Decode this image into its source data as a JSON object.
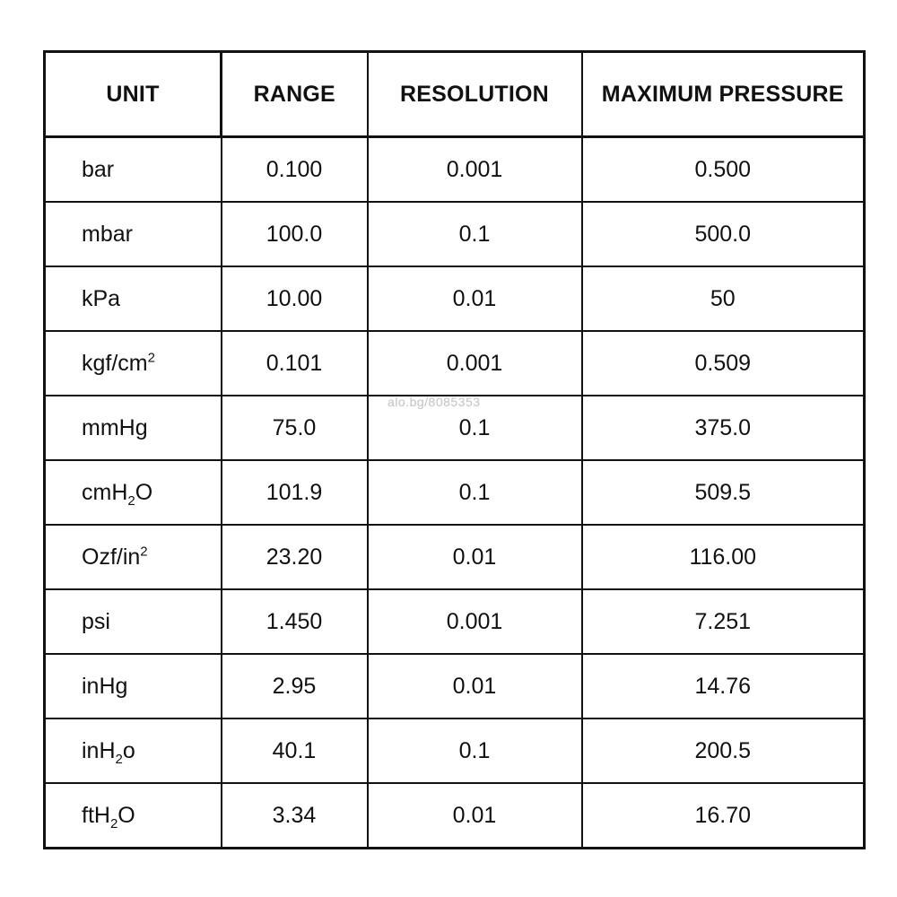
{
  "table": {
    "headers": [
      "UNIT",
      "RANGE",
      "RESOLUTION",
      "MAXIMUM PRESSURE"
    ],
    "rows": [
      {
        "unit": [
          "bar"
        ],
        "range": "0.100",
        "resolution": "0.001",
        "max": "0.500"
      },
      {
        "unit": [
          "mbar"
        ],
        "range": "100.0",
        "resolution": "0.1",
        "max": "500.0"
      },
      {
        "unit": [
          "kPa"
        ],
        "range": "10.00",
        "resolution": "0.01",
        "max": "50"
      },
      {
        "unit": [
          "kgf/cm",
          {
            "sup": "2"
          }
        ],
        "range": "0.101",
        "resolution": "0.001",
        "max": "0.509"
      },
      {
        "unit": [
          "mmHg"
        ],
        "range": "75.0",
        "resolution": "0.1",
        "max": "375.0"
      },
      {
        "unit": [
          "cmH",
          {
            "sub": "2"
          },
          "O"
        ],
        "range": "101.9",
        "resolution": "0.1",
        "max": "509.5"
      },
      {
        "unit": [
          "Ozf/in",
          {
            "sup": "2"
          }
        ],
        "range": "23.20",
        "resolution": "0.01",
        "max": "116.00"
      },
      {
        "unit": [
          "psi"
        ],
        "range": "1.450",
        "resolution": "0.001",
        "max": "7.251"
      },
      {
        "unit": [
          "inHg"
        ],
        "range": "2.95",
        "resolution": "0.01",
        "max": "14.76"
      },
      {
        "unit": [
          "inH",
          {
            "sub": "2"
          },
          "o"
        ],
        "range": "40.1",
        "resolution": "0.1",
        "max": "200.5"
      },
      {
        "unit": [
          "ftH",
          {
            "sub": "2"
          },
          "O"
        ],
        "range": "3.34",
        "resolution": "0.01",
        "max": "16.70"
      }
    ]
  },
  "watermark": "alo.bg/8085353"
}
